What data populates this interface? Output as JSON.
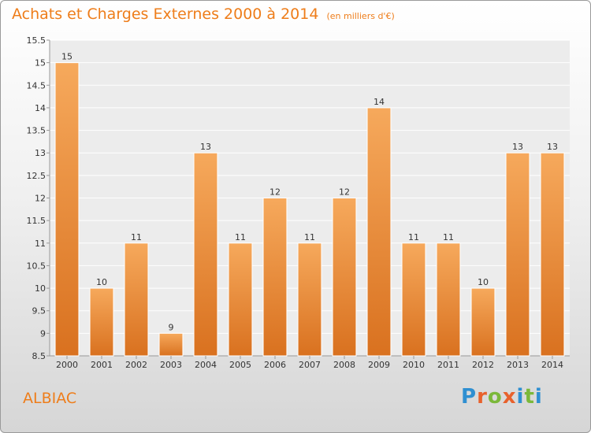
{
  "header": {
    "title": "Achats et Charges Externes 2000 à 2014",
    "subtitle": "(en milliers d'€)"
  },
  "footer": {
    "commune": "ALBIAC",
    "logo_letters": [
      "P",
      "r",
      "o",
      "x",
      "i",
      "t",
      "i"
    ]
  },
  "colors": {
    "accent": "#ee7d1a",
    "bar_top": "#f6a95c",
    "bar_bottom": "#d9711f",
    "logo": [
      "#2f8fd1",
      "#e8612c",
      "#7bb83a",
      "#e8612c",
      "#2f8fd1",
      "#7bb83a",
      "#2f8fd1"
    ]
  },
  "chart_data": {
    "type": "bar",
    "title": "Achats et Charges Externes 2000 à 2014",
    "subtitle": "(en milliers d'€)",
    "categories": [
      "2000",
      "2001",
      "2002",
      "2003",
      "2004",
      "2005",
      "2006",
      "2007",
      "2008",
      "2009",
      "2010",
      "2011",
      "2012",
      "2013",
      "2014"
    ],
    "values": [
      15,
      10,
      11,
      9,
      13,
      11,
      12,
      11,
      12,
      14,
      11,
      11,
      10,
      13,
      13
    ],
    "data_labels": [
      "15",
      "10",
      "11",
      "9",
      "13",
      "11",
      "12",
      "11",
      "12",
      "14",
      "11",
      "11",
      "10",
      "13",
      "13"
    ],
    "ylim": [
      8.5,
      15.5
    ],
    "yticks": [
      8.5,
      9,
      9.5,
      10,
      10.5,
      11,
      11.5,
      12,
      12.5,
      13,
      13.5,
      14,
      14.5,
      15,
      15.5
    ],
    "ytick_labels": [
      "8.5",
      "9",
      "9.5",
      "10",
      "10.5",
      "11",
      "11.5",
      "12",
      "12.5",
      "13",
      "13.5",
      "14",
      "14.5",
      "15",
      "15.5"
    ],
    "grid": true,
    "xlabel": "",
    "ylabel": ""
  }
}
